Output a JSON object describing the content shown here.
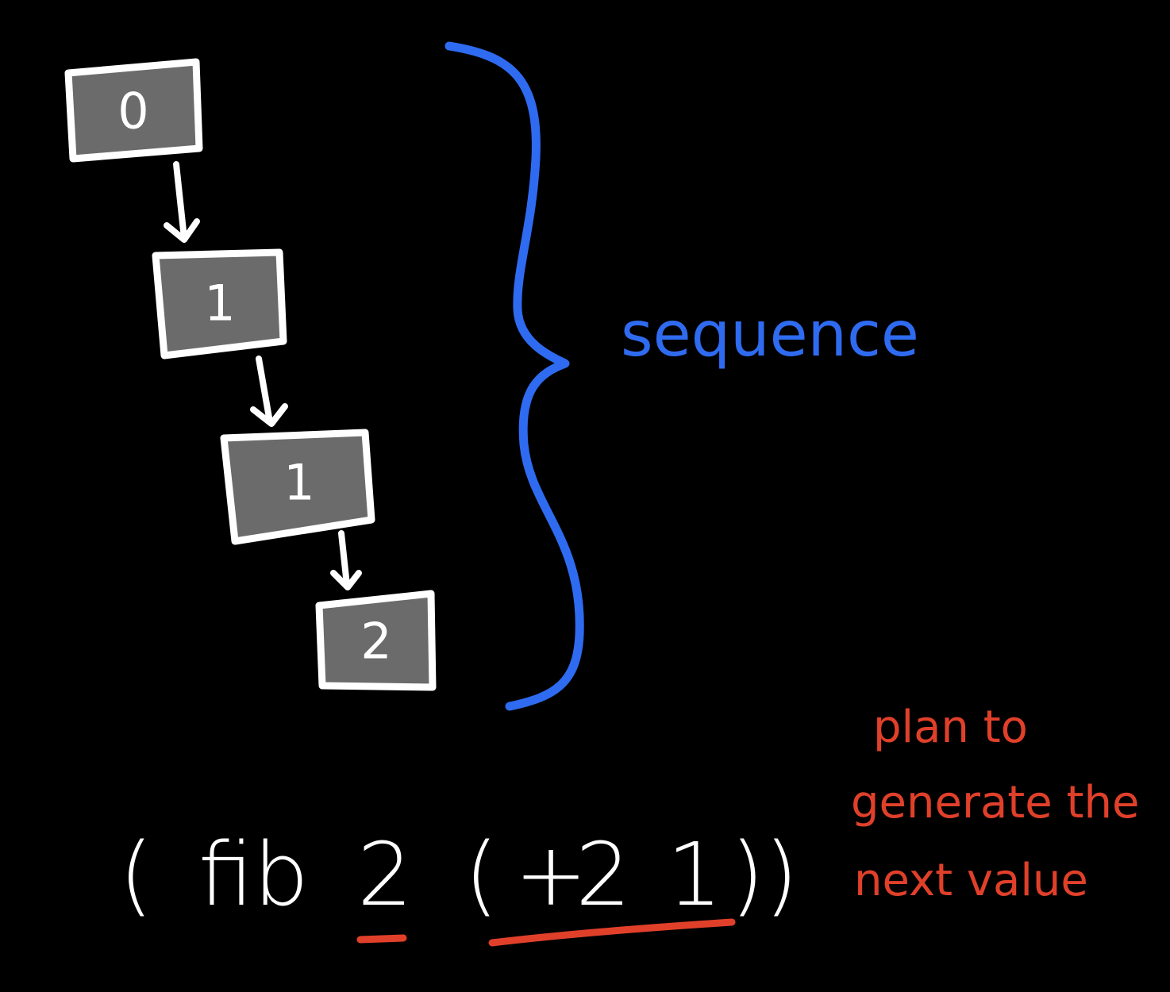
{
  "sequence_nodes": [
    {
      "value": "0"
    },
    {
      "value": "1"
    },
    {
      "value": "1"
    },
    {
      "value": "2"
    }
  ],
  "brace_label": "sequence",
  "expression": {
    "open_paren": "(",
    "func": "fib",
    "current": "2",
    "inner_open": "(",
    "op": "+",
    "arg1": "2",
    "arg2": "1",
    "close_parens": "))"
  },
  "note_lines": [
    "plan to",
    "generate the",
    "next value"
  ],
  "colors": {
    "background": "#000000",
    "node_fill": "#6b6b6b",
    "stroke": "#ffffff",
    "brace": "#2f6bf0",
    "annotation": "#e0402a"
  }
}
